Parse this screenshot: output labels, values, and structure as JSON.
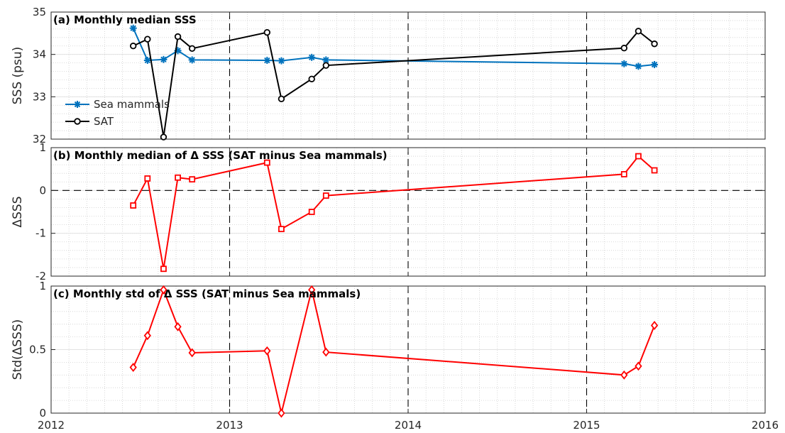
{
  "chart_data": [
    {
      "type": "line",
      "title": "(a) Monthly median SSS",
      "ylabel": "SSS (psu)",
      "ylim": [
        32,
        35
      ],
      "yticks": [
        32,
        33,
        34,
        35
      ],
      "grid": "minor dotted",
      "legend": "left",
      "series": [
        {
          "name": "Sea mammals",
          "color": "#0072BD",
          "marker": "asterisk",
          "x": [
            2012.46,
            2012.54,
            2012.63,
            2012.71,
            2012.79,
            2013.21,
            2013.29,
            2013.46,
            2013.54,
            2015.21,
            2015.29,
            2015.38
          ],
          "y": [
            34.62,
            33.86,
            33.88,
            34.09,
            33.87,
            33.86,
            33.85,
            33.93,
            33.87,
            33.78,
            33.72,
            33.76
          ]
        },
        {
          "name": "SAT",
          "color": "#000000",
          "marker": "circle",
          "x": [
            2012.46,
            2012.54,
            2012.63,
            2012.71,
            2012.79,
            2013.21,
            2013.29,
            2013.46,
            2013.54,
            2015.21,
            2015.29,
            2015.38
          ],
          "y": [
            34.2,
            34.36,
            32.05,
            34.42,
            34.14,
            34.52,
            32.95,
            33.42,
            33.74,
            34.15,
            34.55,
            34.25
          ]
        }
      ]
    },
    {
      "type": "line",
      "title": "(b) Monthly median of Δ SSS (SAT minus Sea mammals)",
      "ylabel": "ΔSSS",
      "ylim": [
        -2,
        1
      ],
      "yticks": [
        -2,
        -1,
        0,
        1
      ],
      "zero_line": true,
      "series": [
        {
          "color": "#FF0000",
          "marker": "square",
          "x": [
            2012.46,
            2012.54,
            2012.63,
            2012.71,
            2012.79,
            2013.21,
            2013.29,
            2013.46,
            2013.54,
            2015.21,
            2015.29,
            2015.38
          ],
          "y": [
            -0.35,
            0.28,
            -1.83,
            0.3,
            0.26,
            0.65,
            -0.9,
            -0.5,
            -0.12,
            0.38,
            0.8,
            0.47
          ]
        }
      ]
    },
    {
      "type": "line",
      "title": "(c) Monthly std of Δ SSS (SAT minus Sea mammals)",
      "ylabel": "Std(ΔSSS)",
      "ylim": [
        0,
        1
      ],
      "yticks": [
        0,
        0.5,
        1
      ],
      "xlim": [
        2012,
        2016
      ],
      "xticks": [
        2012,
        2013,
        2014,
        2015,
        2016
      ],
      "series": [
        {
          "color": "#FF0000",
          "marker": "diamond",
          "x": [
            2012.46,
            2012.54,
            2012.63,
            2012.71,
            2012.79,
            2013.21,
            2013.29,
            2013.46,
            2013.54,
            2015.21,
            2015.29,
            2015.38
          ],
          "y": [
            0.36,
            0.61,
            0.97,
            0.68,
            0.475,
            0.49,
            0.0,
            0.97,
            0.48,
            0.3,
            0.37,
            0.69
          ]
        }
      ]
    }
  ],
  "xaxis": {
    "range": [
      2012,
      2016
    ],
    "ticks": [
      "2012",
      "2013",
      "2014",
      "2015",
      "2016"
    ]
  }
}
